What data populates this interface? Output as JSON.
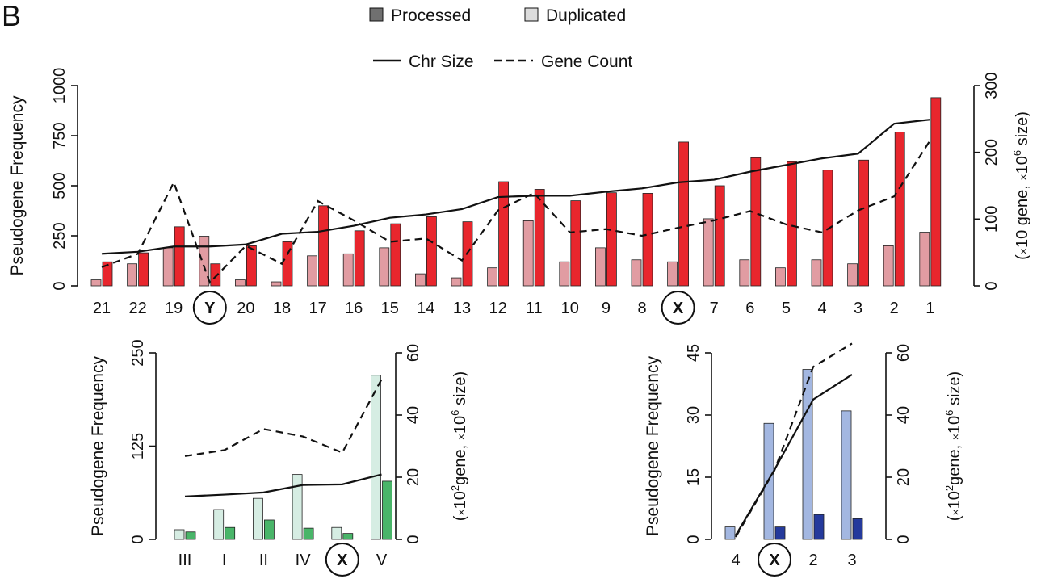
{
  "panel_label": "B",
  "legend": {
    "bar_entries": [
      {
        "label": "Processed",
        "color": "#707070"
      },
      {
        "label": "Duplicated",
        "color": "#dcdcdc"
      }
    ],
    "line_entries": [
      {
        "label": "Chr Size",
        "style": "solid"
      },
      {
        "label": "Gene Count",
        "style": "dashed"
      }
    ]
  },
  "chart_data": [
    {
      "type": "bar",
      "name": "human",
      "ylabel": "Pseudogene Frequency",
      "y2label_prefix": "(",
      "y2label_pre": "×",
      "y2label_mid": "10 gene, ",
      "y2label_x": "×",
      "y2label_mag": "10",
      "y2label_sup": "6",
      "y2label_end": " size)",
      "ylim": [
        0,
        1000
      ],
      "yticks": [
        0,
        250,
        500,
        750,
        1000
      ],
      "y2lim": [
        0,
        300
      ],
      "y2ticks": [
        0,
        100,
        200,
        300
      ],
      "categories": [
        "21",
        "22",
        "19",
        "Y",
        "20",
        "18",
        "17",
        "16",
        "15",
        "14",
        "13",
        "12",
        "11",
        "10",
        "9",
        "8",
        "X",
        "7",
        "6",
        "5",
        "4",
        "3",
        "2",
        "1"
      ],
      "circled": [
        "Y",
        "X"
      ],
      "colors": {
        "duplicated": "#e19ca2",
        "processed": "#e8262d"
      },
      "series": [
        {
          "name": "Duplicated",
          "values": [
            30,
            110,
            190,
            248,
            30,
            20,
            150,
            160,
            190,
            60,
            40,
            90,
            325,
            120,
            190,
            130,
            120,
            335,
            130,
            90,
            130,
            110,
            200,
            268
          ]
        },
        {
          "name": "Processed",
          "values": [
            120,
            165,
            295,
            110,
            200,
            220,
            400,
            275,
            310,
            345,
            320,
            520,
            482,
            425,
            465,
            462,
            718,
            500,
            640,
            620,
            578,
            628,
            768,
            940
          ]
        }
      ],
      "lines": [
        {
          "name": "Chr Size",
          "style": "solid",
          "axis": "right",
          "values": [
            48,
            51,
            59,
            59,
            62,
            78,
            81,
            90,
            102,
            107,
            115,
            133,
            135,
            135,
            141,
            146,
            155,
            159,
            171,
            181,
            191,
            198,
            243,
            249
          ]
        },
        {
          "name": "Gene Count",
          "style": "dashed",
          "axis": "right",
          "values": [
            28,
            48,
            155,
            5,
            60,
            33,
            127,
            98,
            66,
            71,
            38,
            113,
            139,
            80,
            85,
            75,
            87,
            98,
            112,
            92,
            80,
            113,
            134,
            218
          ]
        }
      ]
    },
    {
      "type": "bar",
      "name": "worm",
      "ylabel": "Pseudogene Frequency",
      "y2label_prefix": "(",
      "y2label_pre": "×",
      "y2label_mid": "10",
      "y2label_sup": "2",
      "y2label_rest": "gene, ",
      "y2label_x": "×",
      "y2label_mag": "10",
      "y2label_sup2": "6",
      "y2label_end": " size)",
      "ylim": [
        0,
        250
      ],
      "yticks": [
        0,
        125,
        250
      ],
      "y2lim": [
        0,
        60
      ],
      "y2ticks": [
        0,
        20,
        40,
        60
      ],
      "categories": [
        "III",
        "I",
        "II",
        "IV",
        "X",
        "V"
      ],
      "circled": [
        "X"
      ],
      "colors": {
        "duplicated": "#d6ede3",
        "processed": "#49b569"
      },
      "series": [
        {
          "name": "Duplicated",
          "values": [
            13,
            40,
            55,
            87,
            16,
            220
          ]
        },
        {
          "name": "Processed",
          "values": [
            10,
            16,
            26,
            15,
            8,
            78
          ]
        }
      ],
      "lines": [
        {
          "name": "Chr Size",
          "style": "solid",
          "axis": "right",
          "values": [
            13.8,
            14.4,
            15.1,
            17.5,
            17.7,
            20.9
          ]
        },
        {
          "name": "Gene Count",
          "style": "dashed",
          "axis": "right",
          "values": [
            26.8,
            28.7,
            35.5,
            33.1,
            27.9,
            51.5
          ]
        }
      ]
    },
    {
      "type": "bar",
      "name": "fly",
      "ylabel": "Pseudogene Frequency",
      "y2label_prefix": "(",
      "y2label_pre": "×",
      "y2label_mid": "10",
      "y2label_sup": "2",
      "y2label_rest": "gene, ",
      "y2label_x": "×",
      "y2label_mag": "10",
      "y2label_sup2": "6",
      "y2label_end": " size)",
      "ylim": [
        0,
        45
      ],
      "yticks": [
        0,
        15,
        30,
        45
      ],
      "y2lim": [
        0,
        60
      ],
      "y2ticks": [
        0,
        20,
        40,
        60
      ],
      "categories": [
        "4",
        "X",
        "2",
        "3"
      ],
      "circled": [
        "X"
      ],
      "colors": {
        "duplicated": "#a3b7e1",
        "processed": "#253a9c"
      },
      "series": [
        {
          "name": "Duplicated",
          "values": [
            3,
            28,
            41,
            31
          ]
        },
        {
          "name": "Processed",
          "values": [
            0,
            3,
            6,
            5
          ]
        }
      ],
      "lines": [
        {
          "name": "Chr Size",
          "style": "solid",
          "axis": "right",
          "values": [
            1.3,
            22.4,
            45.0,
            53.0
          ]
        },
        {
          "name": "Gene Count",
          "style": "dashed",
          "axis": "right",
          "values": [
            0.8,
            22.2,
            55.5,
            63.0
          ]
        }
      ]
    }
  ]
}
